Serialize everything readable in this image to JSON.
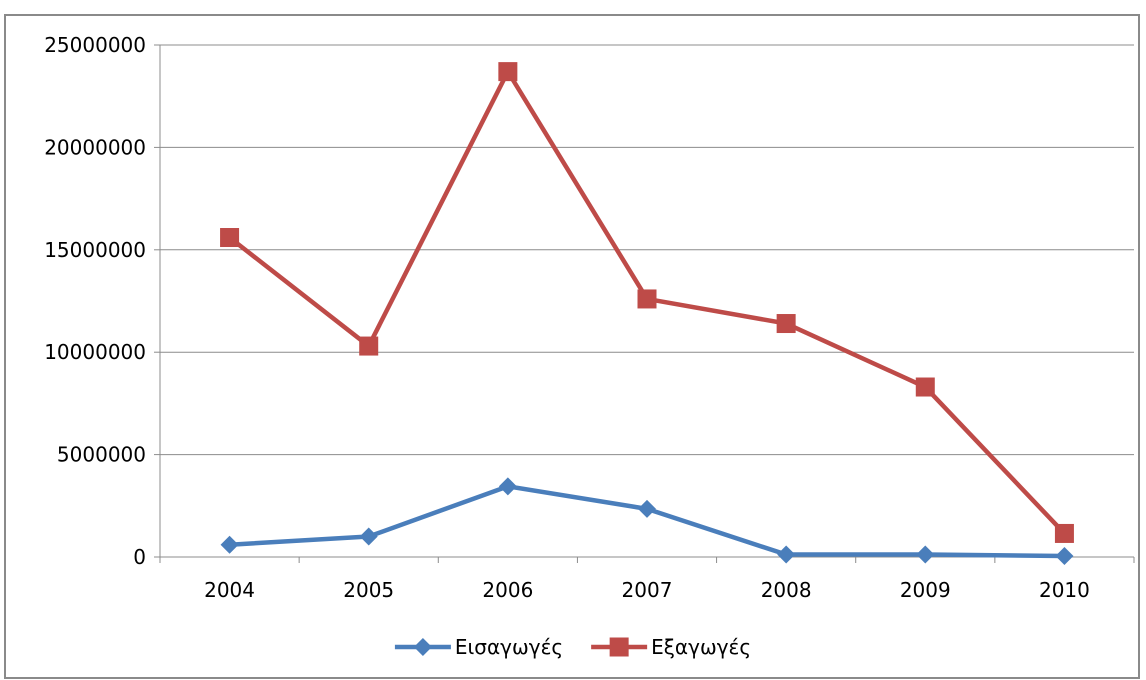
{
  "chart_data": {
    "type": "line",
    "title": "",
    "xlabel": "",
    "ylabel": "",
    "categories": [
      "2004",
      "2005",
      "2006",
      "2007",
      "2008",
      "2009",
      "2010"
    ],
    "y_ticks": [
      "0",
      "5000000",
      "10000000",
      "15000000",
      "20000000",
      "25000000"
    ],
    "ylim": [
      0,
      25000000
    ],
    "grid": "horizontal",
    "legend_position": "bottom",
    "series": [
      {
        "name": "Εισαγωγές",
        "color": "#4a7ebb",
        "marker": "diamond",
        "values": [
          600000,
          1000000,
          3450000,
          2350000,
          120000,
          120000,
          50000
        ]
      },
      {
        "name": "Εξαγωγές",
        "color": "#be4b48",
        "marker": "square",
        "values": [
          15600000,
          10300000,
          23700000,
          12600000,
          11400000,
          8300000,
          1150000
        ]
      }
    ]
  }
}
